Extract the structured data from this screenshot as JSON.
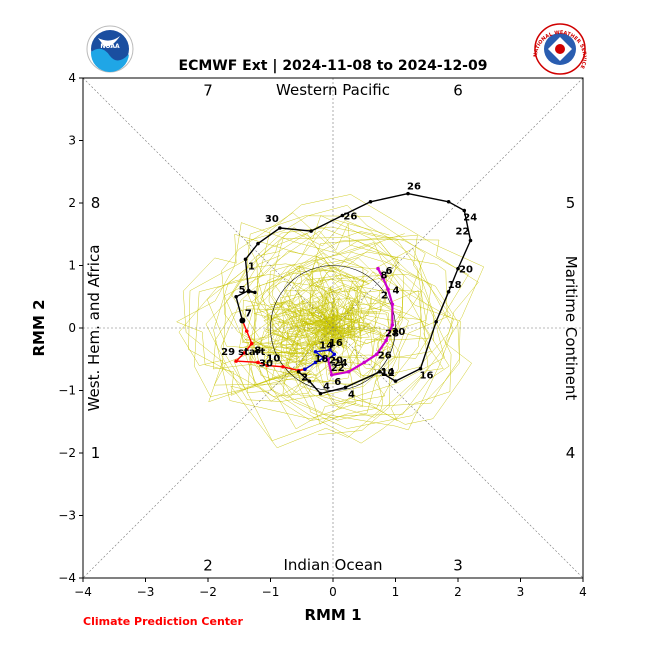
{
  "chart_data": {
    "type": "line",
    "title": "ECMWF Ext | 2024-11-08 to 2024-12-09",
    "xlabel": "RMM 1",
    "ylabel": "RMM 2",
    "xlim": [
      -4,
      4
    ],
    "ylim": [
      -4,
      4
    ],
    "xticks": [
      "−4",
      "−3",
      "−2",
      "−1",
      "0",
      "1",
      "2",
      "3",
      "4"
    ],
    "yticks": [
      "−4",
      "−3",
      "−2",
      "−1",
      "0",
      "1",
      "2",
      "3",
      "4"
    ],
    "phase_labels": [
      {
        "num": "1",
        "x": -3.8,
        "y": -2.0
      },
      {
        "num": "2",
        "x": -2.0,
        "y": -3.8
      },
      {
        "num": "3",
        "x": 2.0,
        "y": -3.8
      },
      {
        "num": "4",
        "x": 3.8,
        "y": -2.0
      },
      {
        "num": "5",
        "x": 3.8,
        "y": 2.0
      },
      {
        "num": "6",
        "x": 2.0,
        "y": 3.8
      },
      {
        "num": "7",
        "x": -2.0,
        "y": 3.8
      },
      {
        "num": "8",
        "x": -3.8,
        "y": 2.0
      }
    ],
    "region_labels": {
      "top": "Western Pacific",
      "bottom": "Indian Ocean",
      "left": "West. Hem. and Africa",
      "right": "Maritime Continent"
    },
    "start_label": "start",
    "series": [
      {
        "color": "#ff0000",
        "points": [
          [
            -1.45,
            0.12
          ],
          [
            -1.38,
            -0.05
          ],
          [
            -1.3,
            -0.25
          ],
          [
            -1.42,
            -0.4
          ],
          [
            -1.55,
            -0.53
          ],
          [
            -1.2,
            -0.55
          ],
          [
            -1.05,
            -0.6
          ],
          [
            -0.8,
            -0.62
          ],
          [
            -0.55,
            -0.68
          ],
          [
            -0.45,
            -0.66
          ]
        ],
        "labels": [
          {
            "text": "7",
            "i": 0
          },
          {
            "text": "8",
            "i": 2
          },
          {
            "text": "29",
            "i": 4
          },
          {
            "text": "30",
            "i": 5
          },
          {
            "text": "10",
            "i": 6
          },
          {
            "text": "2",
            "i": 8
          }
        ]
      },
      {
        "color": "#000000",
        "points": [
          [
            -1.45,
            0.12
          ],
          [
            -1.55,
            0.5
          ],
          [
            -1.35,
            0.6
          ],
          [
            -1.25,
            0.57
          ],
          [
            -1.35,
            0.58
          ],
          [
            -1.4,
            1.1
          ],
          [
            -1.2,
            1.35
          ],
          [
            -0.85,
            1.6
          ],
          [
            -0.35,
            1.55
          ],
          [
            0.15,
            1.8
          ],
          [
            0.6,
            2.02
          ],
          [
            1.2,
            2.15
          ],
          [
            1.85,
            2.02
          ],
          [
            2.1,
            1.88
          ],
          [
            2.2,
            1.4
          ],
          [
            2.0,
            0.95
          ],
          [
            1.85,
            0.58
          ],
          [
            1.65,
            0.1
          ],
          [
            1.4,
            -0.65
          ],
          [
            1.0,
            -0.85
          ],
          [
            0.75,
            -0.7
          ],
          [
            0.2,
            -0.95
          ],
          [
            -0.2,
            -1.05
          ],
          [
            -0.38,
            -0.85
          ],
          [
            -0.55,
            -0.7
          ]
        ],
        "labels": [
          {
            "text": "5",
            "i": 1
          },
          {
            "text": "1",
            "i": 5
          },
          {
            "text": "30",
            "i": 7
          },
          {
            "text": "26",
            "i": 9
          },
          {
            "text": "26",
            "i": 11
          },
          {
            "text": "24",
            "i": 13
          },
          {
            "text": "22",
            "i": 14
          },
          {
            "text": "20",
            "i": 15
          },
          {
            "text": "18",
            "i": 16
          },
          {
            "text": "16",
            "i": 18
          },
          {
            "text": "14",
            "i": 19
          },
          {
            "text": "12",
            "i": 20
          },
          {
            "text": "4",
            "i": 22
          },
          {
            "text": "4",
            "i": 21
          }
        ]
      },
      {
        "color": "#0000cc",
        "points": [
          [
            -0.45,
            -0.66
          ],
          [
            -0.28,
            -0.55
          ],
          [
            -0.15,
            -0.48
          ],
          [
            -0.28,
            -0.38
          ],
          [
            -0.05,
            -0.35
          ],
          [
            0.02,
            -0.42
          ],
          [
            -0.08,
            -0.5
          ]
        ],
        "labels": [
          {
            "text": "16",
            "i": 4
          },
          {
            "text": "18",
            "i": 3
          },
          {
            "text": "14",
            "i": 5
          },
          {
            "text": "20",
            "i": 6
          }
        ]
      },
      {
        "color": "#cc00cc",
        "points": [
          [
            -0.08,
            -0.5
          ],
          [
            -0.02,
            -0.75
          ],
          [
            0.25,
            -0.7
          ],
          [
            0.5,
            -0.55
          ],
          [
            0.7,
            -0.42
          ],
          [
            0.85,
            -0.2
          ],
          [
            0.95,
            0.05
          ],
          [
            0.95,
            0.38
          ],
          [
            0.88,
            0.62
          ],
          [
            0.8,
            0.8
          ],
          [
            0.72,
            0.95
          ]
        ],
        "labels": [
          {
            "text": "22",
            "i": 1
          },
          {
            "text": "6",
            "i": 1
          },
          {
            "text": "24",
            "i": 2
          },
          {
            "text": "26",
            "i": 4
          },
          {
            "text": "28",
            "i": 5
          },
          {
            "text": "30",
            "i": 6
          },
          {
            "text": "2",
            "i": 7
          },
          {
            "text": "4",
            "i": 8
          },
          {
            "text": "6",
            "i": 9
          },
          {
            "text": "8",
            "i": 10
          }
        ]
      }
    ]
  },
  "credit": "Climate Prediction Center",
  "logos": {
    "left": "noaa-logo",
    "right": "nws-logo",
    "nws_text": "NATIONAL WEATHER SERVICE"
  }
}
